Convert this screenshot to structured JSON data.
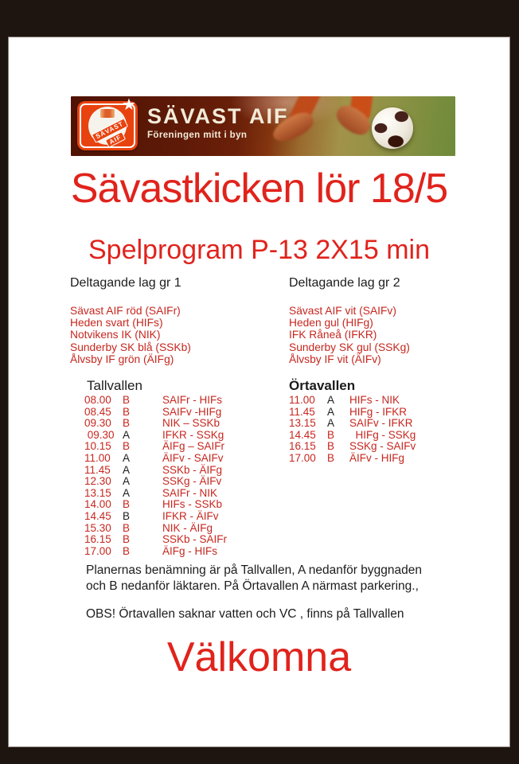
{
  "colors": {
    "frame": "#1f1510",
    "accent_red": "#e0231c",
    "text_red": "#c6271f",
    "banner_maroon": "#5f1a07",
    "banner_cream": "#f2ebd9"
  },
  "banner": {
    "logo_line1": "SÄVAST",
    "logo_line2": "AIF",
    "star": "★",
    "club_name": "SÄVAST AIF",
    "tagline": "Föreningen mitt i byn"
  },
  "title": "Sävastkicken lör 18/5",
  "subtitle": "Spelprogram P-13 2X15 min",
  "groups": [
    {
      "heading": "Deltagande lag gr 1",
      "teams": [
        "Sävast AIF röd (SAIFr)",
        "Heden svart (HIFs)",
        "Notvikens IK (NIK)",
        "Sunderby SK blå (SSKb)",
        "Ålvsby IF grön (ÄIFg)"
      ]
    },
    {
      "heading": "Deltagande lag gr 2",
      "teams": [
        "Sävast AIF vit (SAIFv)",
        "Heden gul (HIFg)",
        "IFK Råneå (IFKR)",
        "Sunderby SK gul (SSKg)",
        "Ålvsby IF vit (ÄIFv)"
      ]
    }
  ],
  "schedules": [
    {
      "venue": "Tallvallen",
      "rows": [
        {
          "time": "08.00",
          "court": "B",
          "court_color": "red",
          "match": "SAIFr - HIFs"
        },
        {
          "time": "08.45",
          "court": "B",
          "court_color": "red",
          "match": "SAIFv -HIFg"
        },
        {
          "time": "09.30",
          "court": "B",
          "court_color": "red",
          "match": "NIK – SSKb"
        },
        {
          "time": " 09.30",
          "court": "A",
          "court_color": "black",
          "match": "IFKR - SSKg"
        },
        {
          "time": "10.15",
          "court": "B",
          "court_color": "red",
          "match": "ÄIFg – SAIFr"
        },
        {
          "time": "11.00",
          "court": "A",
          "court_color": "black",
          "match": "ÄIFv - SAIFv"
        },
        {
          "time": "11.45",
          "court": "A",
          "court_color": "black",
          "match": "SSKb - ÄIFg"
        },
        {
          "time": "12.30",
          "court": "A",
          "court_color": "black",
          "match": "SSKg - ÄIFv"
        },
        {
          "time": "13.15",
          "court": "A",
          "court_color": "black",
          "match": "SAIFr - NIK"
        },
        {
          "time": "14.00",
          "court": "B",
          "court_color": "red",
          "match": "HIFs - SSKb"
        },
        {
          "time": "14.45",
          "court": "B",
          "court_color": "black",
          "match": "IFKR - ÄIFv"
        },
        {
          "time": "15.30",
          "court": "B",
          "court_color": "red",
          "match": "NIK - ÄIFg"
        },
        {
          "time": "16.15",
          "court": "B",
          "court_color": "red",
          "match": "SSKb - SAIFr"
        },
        {
          "time": "17.00",
          "court": "B",
          "court_color": "red",
          "match": "ÄIFg - HIFs"
        }
      ]
    },
    {
      "venue": "Örtavallen",
      "rows": [
        {
          "time": "11.00",
          "court": "A",
          "court_color": "black",
          "match": "HIFs - NIK"
        },
        {
          "time": "11.45",
          "court": "A",
          "court_color": "black",
          "match": "HIFg - IFKR"
        },
        {
          "time": "13.15",
          "court": "A",
          "court_color": "black",
          "match": "SAIFv - IFKR"
        },
        {
          "time": "14.45",
          "court": "B",
          "court_color": "red",
          "match": "  HIFg - SSKg"
        },
        {
          "time": "16.15",
          "court": "B",
          "court_color": "red",
          "match": "SSKg - SAIFv"
        },
        {
          "time": "17.00",
          "court": "B",
          "court_color": "red",
          "match": "ÄIFv - HIFg"
        }
      ]
    }
  ],
  "notes": {
    "plan_line1": "Planernas benämning är på Tallvallen, A nedanför byggnaden",
    "plan_line2": "och B nedanför läktaren. På Örtavallen A närmast parkering.,",
    "obs": "OBS! Örtavallen saknar vatten och VC , finns på Tallvallen"
  },
  "closing": "Välkomna"
}
